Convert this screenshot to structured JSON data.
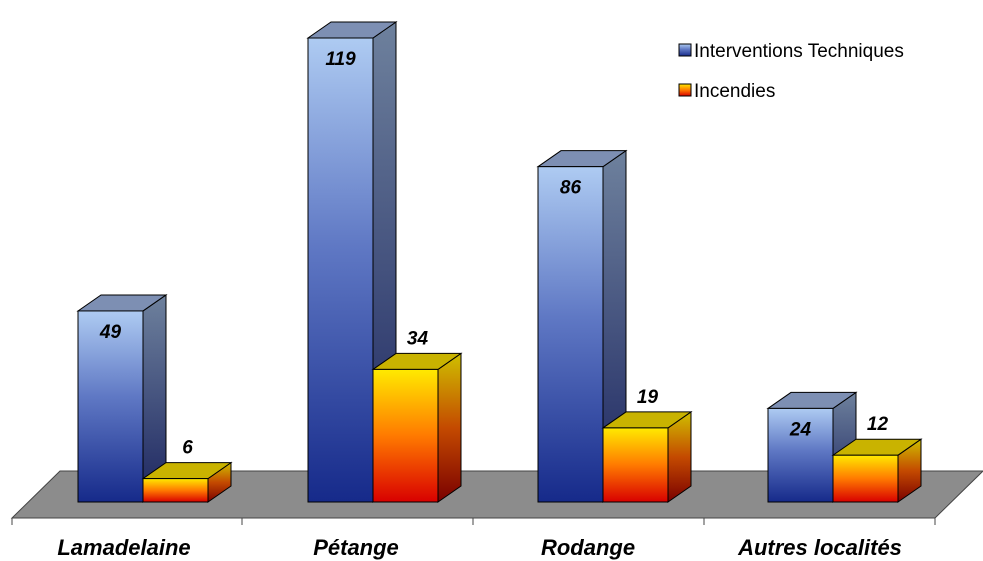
{
  "chart_data": {
    "type": "bar",
    "categories": [
      "Lamadelaine",
      "Pétange",
      "Rodange",
      "Autres localités"
    ],
    "series": [
      {
        "name": "Interventions Techniques",
        "values": [
          49,
          119,
          86,
          24
        ],
        "color_top": "#a9c8f0",
        "color_bottom": "#1c2e8e"
      },
      {
        "name": "Incendies",
        "values": [
          6,
          34,
          19,
          12
        ],
        "color_top": "#ffee00",
        "color_bottom": "#dd0000"
      }
    ],
    "value_labels": [
      "49",
      "119",
      "86",
      "24",
      "6",
      "34",
      "19",
      "12"
    ],
    "ylim": [
      0,
      119
    ],
    "grid": false,
    "legend_position": "top-right",
    "style": "3d-column",
    "floor_color": "#8c8c8c"
  }
}
